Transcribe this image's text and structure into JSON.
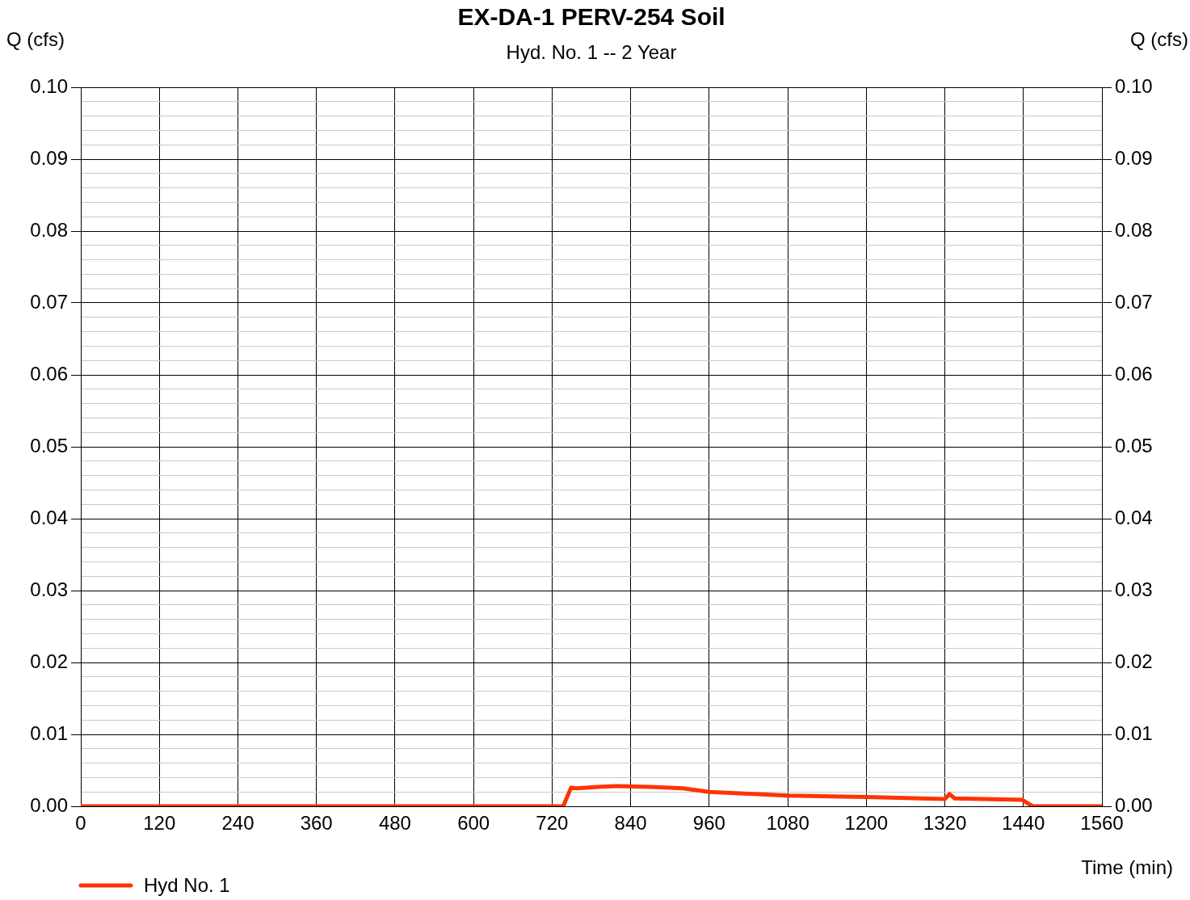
{
  "chart_data": {
    "type": "line",
    "title": "EX-DA-1 PERV-254 Soil",
    "subtitle": "Hyd. No. 1 -- 2 Year",
    "xlabel": "Time (min)",
    "ylabel": "Q (cfs)",
    "y2label": "Q (cfs)",
    "series": [
      {
        "name": "Hyd No. 1",
        "color": "#ff3300",
        "x": [
          0,
          737,
          749,
          758,
          790,
          818,
          870,
          920,
          960,
          1080,
          1200,
          1320,
          1327,
          1335,
          1438,
          1454,
          1560
        ],
        "values": [
          0,
          0,
          0.0026,
          0.0025,
          0.0027,
          0.0028,
          0.0027,
          0.0025,
          0.002,
          0.0015,
          0.0013,
          0.001,
          0.0017,
          0.0011,
          0.0009,
          0,
          0
        ]
      }
    ],
    "xlim": [
      0,
      1560
    ],
    "xticks": [
      0,
      120,
      240,
      360,
      480,
      600,
      720,
      840,
      960,
      1080,
      1200,
      1320,
      1440,
      1560
    ],
    "ylim": [
      0,
      0.1
    ],
    "yticks": [
      {
        "value": 0,
        "label": "0.00"
      },
      {
        "value": 0.002,
        "label": null
      },
      {
        "value": 0.004,
        "label": null
      },
      {
        "value": 0.006,
        "label": null
      },
      {
        "value": 0.008,
        "label": null
      },
      {
        "value": 0.01,
        "label": "0.01"
      },
      {
        "value": 0.012,
        "label": null
      },
      {
        "value": 0.014,
        "label": null
      },
      {
        "value": 0.016,
        "label": null
      },
      {
        "value": 0.018,
        "label": null
      },
      {
        "value": 0.02,
        "label": "0.02"
      },
      {
        "value": 0.022,
        "label": null
      },
      {
        "value": 0.024,
        "label": null
      },
      {
        "value": 0.026,
        "label": null
      },
      {
        "value": 0.028,
        "label": null
      },
      {
        "value": 0.03,
        "label": "0.03"
      },
      {
        "value": 0.032,
        "label": null
      },
      {
        "value": 0.034,
        "label": null
      },
      {
        "value": 0.036,
        "label": null
      },
      {
        "value": 0.038,
        "label": null
      },
      {
        "value": 0.04,
        "label": "0.04"
      },
      {
        "value": 0.042,
        "label": null
      },
      {
        "value": 0.044,
        "label": null
      },
      {
        "value": 0.046,
        "label": null
      },
      {
        "value": 0.048,
        "label": null
      },
      {
        "value": 0.05,
        "label": "0.05"
      },
      {
        "value": 0.052,
        "label": null
      },
      {
        "value": 0.054,
        "label": null
      },
      {
        "value": 0.056,
        "label": null
      },
      {
        "value": 0.058,
        "label": null
      },
      {
        "value": 0.06,
        "label": "0.06"
      },
      {
        "value": 0.062,
        "label": null
      },
      {
        "value": 0.064,
        "label": null
      },
      {
        "value": 0.066,
        "label": null
      },
      {
        "value": 0.068,
        "label": null
      },
      {
        "value": 0.07,
        "label": "0.07"
      },
      {
        "value": 0.072,
        "label": null
      },
      {
        "value": 0.074,
        "label": null
      },
      {
        "value": 0.076,
        "label": null
      },
      {
        "value": 0.078,
        "label": null
      },
      {
        "value": 0.08,
        "label": "0.08"
      },
      {
        "value": 0.082,
        "label": null
      },
      {
        "value": 0.084,
        "label": null
      },
      {
        "value": 0.086,
        "label": null
      },
      {
        "value": 0.088,
        "label": null
      },
      {
        "value": 0.09,
        "label": "0.09"
      },
      {
        "value": 0.092,
        "label": null
      },
      {
        "value": 0.094,
        "label": null
      },
      {
        "value": 0.096,
        "label": null
      },
      {
        "value": 0.098,
        "label": null
      },
      {
        "value": 0.1,
        "label": "0.10"
      }
    ],
    "y2lim": [
      0,
      0.1
    ],
    "y2ticks": [
      {
        "value": 0,
        "label": "0.00"
      },
      {
        "value": 0.01,
        "label": "0.01"
      },
      {
        "value": 0.02,
        "label": "0.02"
      },
      {
        "value": 0.03,
        "label": "0.03"
      },
      {
        "value": 0.04,
        "label": "0.04"
      },
      {
        "value": 0.05,
        "label": "0.05"
      },
      {
        "value": 0.06,
        "label": "0.06"
      },
      {
        "value": 0.07,
        "label": "0.07"
      },
      {
        "value": 0.08,
        "label": "0.08"
      },
      {
        "value": 0.09,
        "label": "0.09"
      },
      {
        "value": 0.1,
        "label": "0.10"
      }
    ],
    "grid": true,
    "legend": "bottom left",
    "marker": "none",
    "line_style": "solid"
  }
}
